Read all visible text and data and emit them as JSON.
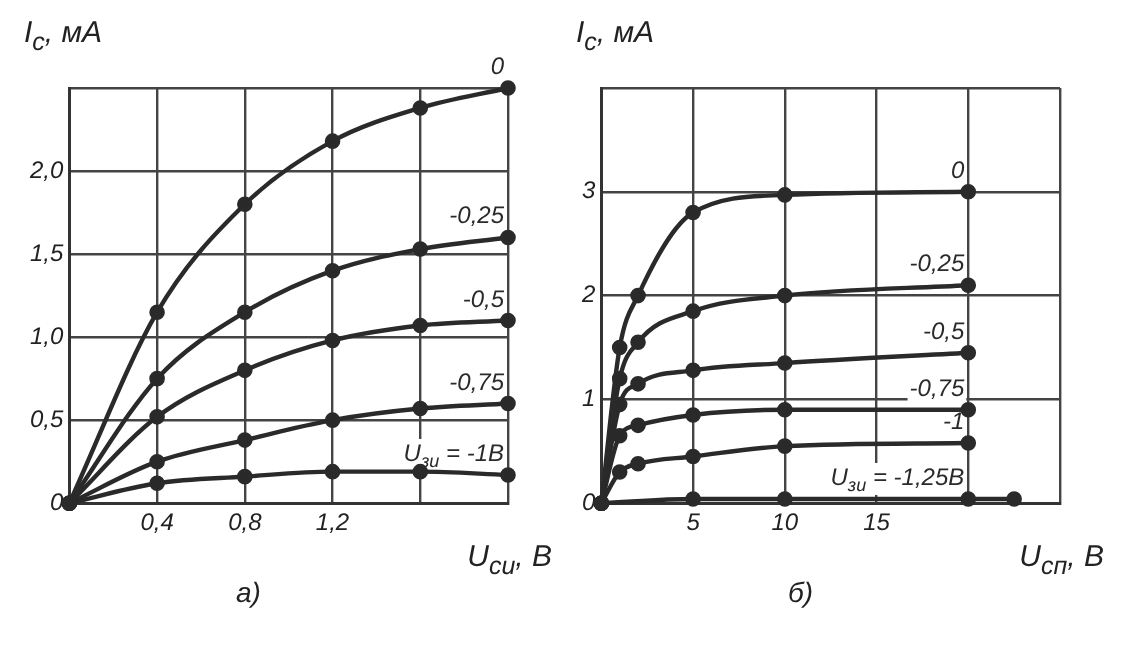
{
  "chart_data": [
    {
      "type": "line",
      "xlabel": "U$_{си}$, В",
      "ylabel": "I$_{с}$, мА",
      "annotations": [
        "а)"
      ],
      "x": [
        0,
        0.4,
        0.8,
        1.2,
        1.6,
        2.0
      ],
      "xlim": [
        0,
        2.0
      ],
      "ylim": [
        0,
        2.5
      ],
      "xticks": [
        {
          "value": 0,
          "label": null
        },
        {
          "value": 0.4,
          "label": "0,4"
        },
        {
          "value": 0.8,
          "label": "0,8"
        },
        {
          "value": 1.2,
          "label": "1,2"
        },
        {
          "value": 1.6,
          "label": null
        },
        {
          "value": 2.0,
          "label": null
        }
      ],
      "yticks": [
        0,
        {
          "value": 0.5,
          "label": "0,5"
        },
        {
          "value": 1.0,
          "label": "1,0"
        },
        {
          "value": 1.5,
          "label": "1,5"
        },
        {
          "value": 2.0,
          "label": "2,0"
        },
        {
          "value": 2.5,
          "label": null
        }
      ],
      "grid": true,
      "legend": false,
      "marker": "circle",
      "line_style": "solid",
      "series": [
        {
          "name": "0",
          "color": "#2a2a2a",
          "values": [
            0,
            1.15,
            1.8,
            2.18,
            2.38,
            2.5
          ]
        },
        {
          "name": "-0,25",
          "color": "#2a2a2a",
          "values": [
            0,
            0.75,
            1.15,
            1.4,
            1.53,
            1.6
          ]
        },
        {
          "name": "-0,5",
          "color": "#2a2a2a",
          "values": [
            0,
            0.52,
            0.8,
            0.98,
            1.07,
            1.1
          ]
        },
        {
          "name": "-0,75",
          "color": "#2a2a2a",
          "values": [
            0,
            0.25,
            0.38,
            0.5,
            0.57,
            0.6
          ]
        },
        {
          "name": "U$_{зи}$ = -1В",
          "color": "#2a2a2a",
          "values": [
            0,
            0.12,
            0.16,
            0.19,
            0.19,
            0.17
          ]
        }
      ]
    },
    {
      "type": "line",
      "xlabel": "U$_{сп}$, В",
      "ylabel": "I$_{с}$, мА",
      "annotations": [
        "б)"
      ],
      "x": [
        0,
        1,
        2,
        5,
        10,
        20
      ],
      "xlim": [
        0,
        25
      ],
      "ylim": [
        0,
        4
      ],
      "xticks": [
        {
          "value": 0,
          "label": null
        },
        5,
        10,
        15,
        {
          "value": 20,
          "label": null
        },
        {
          "value": 25,
          "label": null
        }
      ],
      "yticks": [
        0,
        1,
        2,
        3,
        {
          "value": 4,
          "label": null
        }
      ],
      "grid": true,
      "legend": false,
      "marker": "circle",
      "line_style": "solid",
      "series": [
        {
          "name": "0",
          "color": "#2a2a2a",
          "values": [
            0,
            1.5,
            2.0,
            2.8,
            2.97,
            3.0
          ]
        },
        {
          "name": "-0,25",
          "color": "#2a2a2a",
          "values": [
            0,
            1.2,
            1.55,
            1.85,
            2.0,
            2.1
          ]
        },
        {
          "name": "-0,5",
          "color": "#2a2a2a",
          "values": [
            0,
            0.95,
            1.15,
            1.28,
            1.35,
            1.45
          ]
        },
        {
          "name": "-0,75",
          "color": "#2a2a2a",
          "values": [
            0,
            0.65,
            0.75,
            0.85,
            0.9,
            0.9
          ]
        },
        {
          "name": "-1",
          "color": "#2a2a2a",
          "values": [
            0,
            0.3,
            0.38,
            0.45,
            0.55,
            0.58
          ]
        },
        {
          "name": "U$_{зи}$ = -1,25В",
          "color": "#2a2a2a",
          "x": [
            0,
            5,
            10,
            20,
            22.5
          ],
          "values": [
            0,
            0.04,
            0.04,
            0.04,
            0.04
          ]
        }
      ]
    }
  ]
}
